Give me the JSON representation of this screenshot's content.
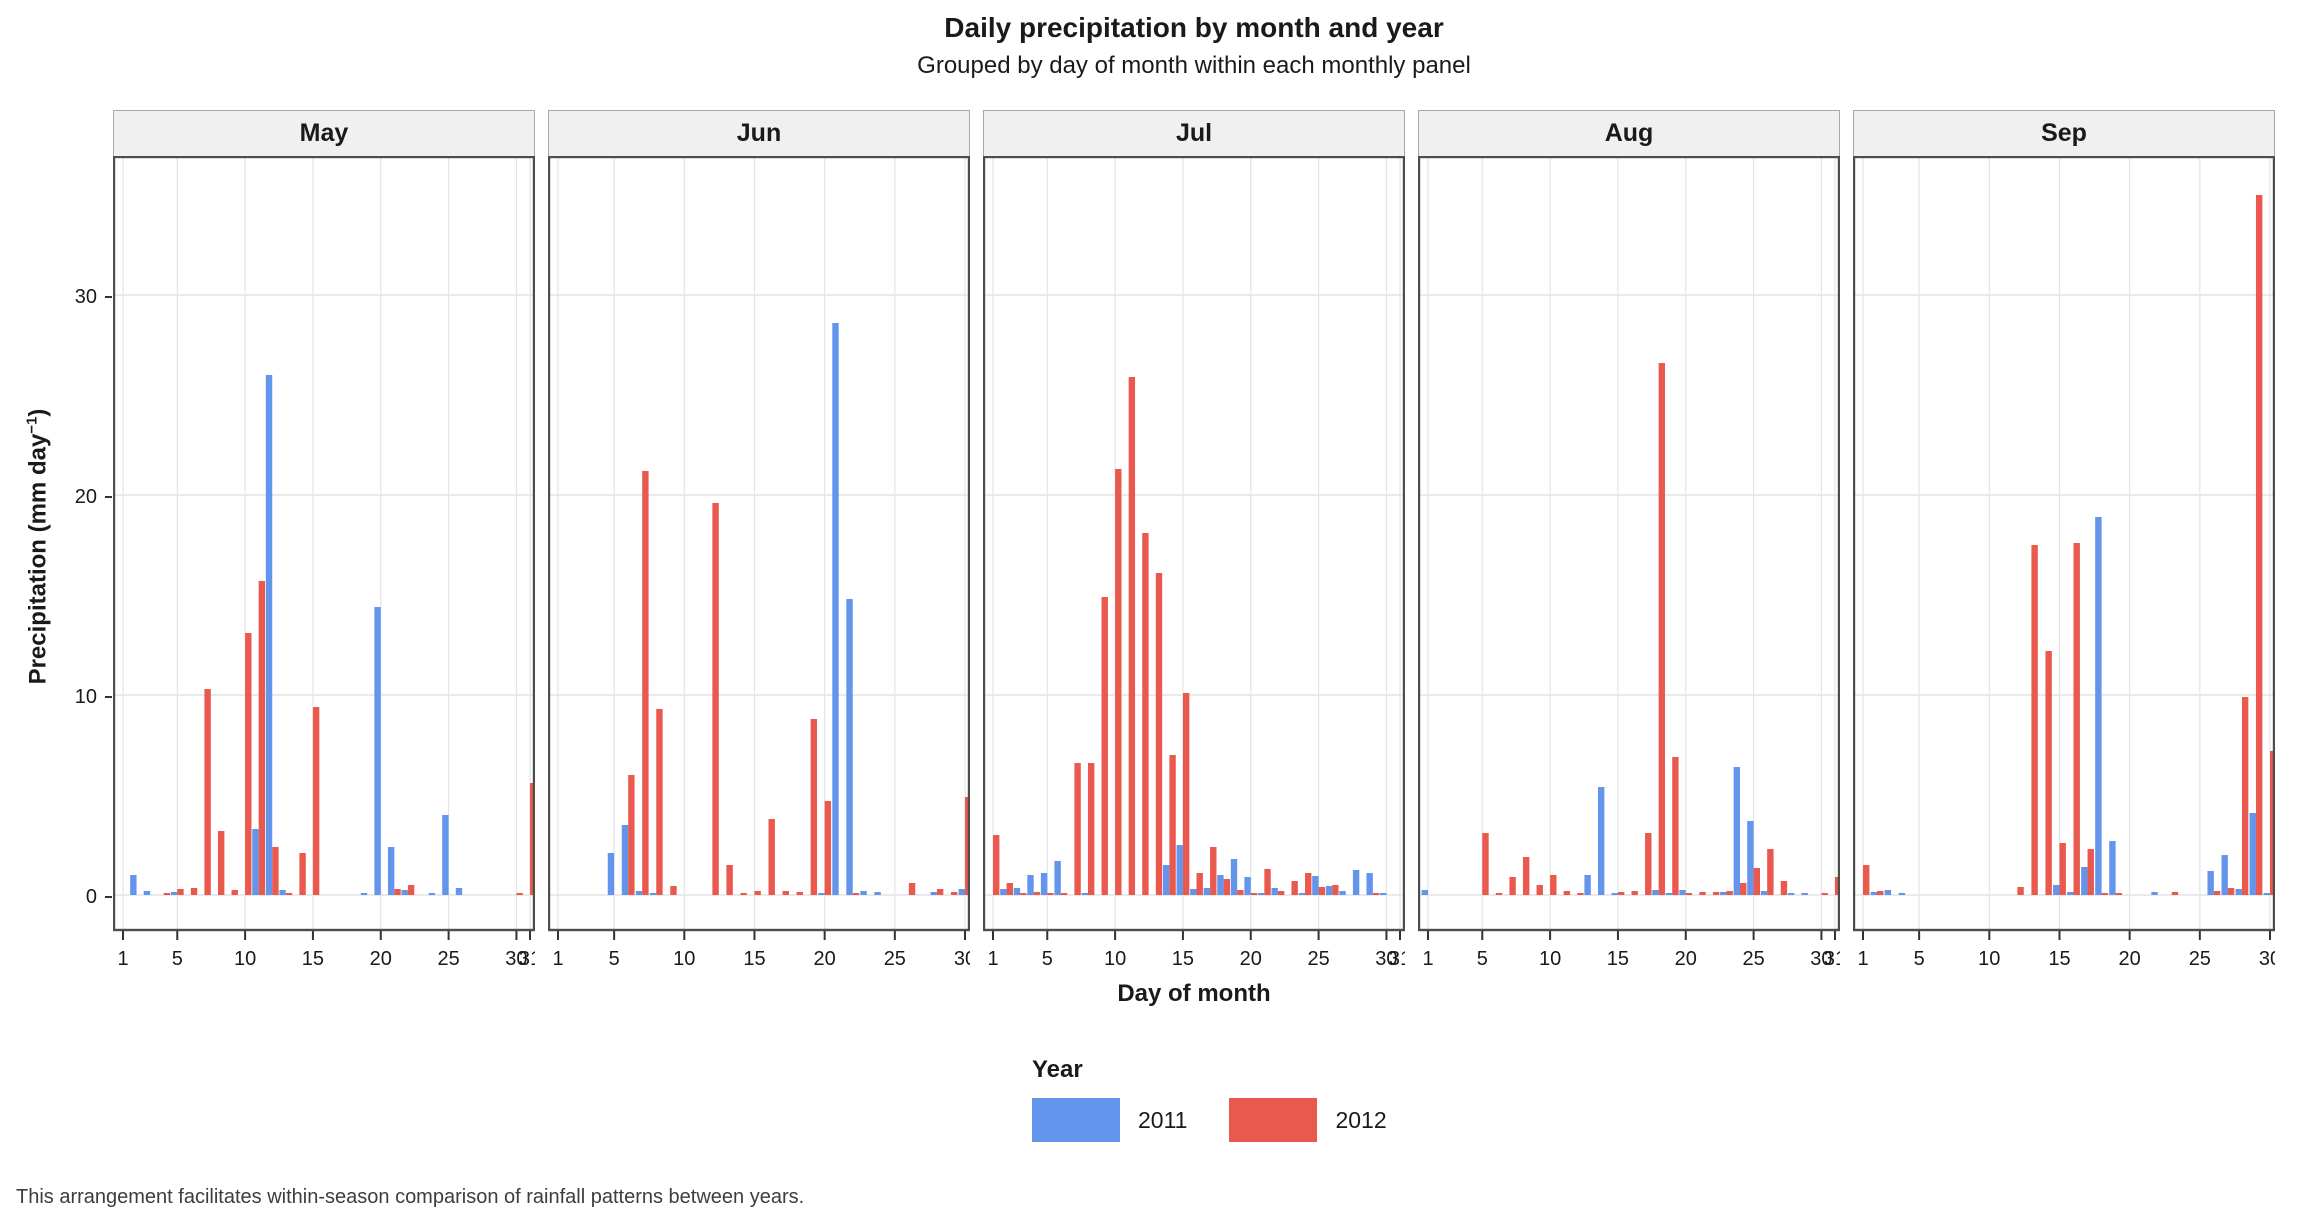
{
  "title": "Daily precipitation by month and year",
  "subtitle": "Grouped by day of month within each monthly panel",
  "footer": "This arrangement facilitates within-season comparison of rainfall patterns between years.",
  "y_axis": {
    "title_main": "Precipitation (mm day",
    "title_sup": "−1",
    "title_close": ")",
    "ticks": [
      0,
      10,
      20,
      30
    ]
  },
  "x_axis": {
    "title": "Day of month"
  },
  "legend": {
    "title": "Year",
    "entries": [
      {
        "label": "2011",
        "color": "#6495ED"
      },
      {
        "label": "2012",
        "color": "#E9594E"
      }
    ]
  },
  "colors": {
    "year_2011": "#6495ED",
    "year_2012": "#E9594E",
    "strip_bg": "#f0f0f0",
    "strip_border": "#a8a8a8",
    "panel_border": "#4d4d4d",
    "gridline": "#e4e4e4",
    "axis": "#333333"
  },
  "chart_data": {
    "type": "bar",
    "grouped_by": "year",
    "title": "Daily precipitation by month and year",
    "subtitle": "Grouped by day of month within each monthly panel",
    "xlabel": "Day of month",
    "ylabel": "Precipitation (mm day^-1)",
    "ylim": [
      0,
      37
    ],
    "y_ticks": [
      0,
      10,
      20,
      30
    ],
    "legend_position": "bottom",
    "facets": [
      {
        "month": "May",
        "days": 31,
        "x_ticks": [
          1,
          5,
          10,
          15,
          20,
          25,
          30,
          31
        ],
        "series": [
          {
            "name": "2011",
            "color": "#6495ED",
            "points": [
              [
                2,
                1.0
              ],
              [
                3,
                0.2
              ],
              [
                5,
                0.15
              ],
              [
                11,
                3.3
              ],
              [
                12,
                26.0
              ],
              [
                13,
                0.25
              ],
              [
                19,
                0.1
              ],
              [
                20,
                14.4
              ],
              [
                21,
                2.4
              ],
              [
                22,
                0.25
              ],
              [
                24,
                0.1
              ],
              [
                25,
                4.0
              ],
              [
                26,
                0.35
              ]
            ]
          },
          {
            "name": "2012",
            "color": "#E9594E",
            "points": [
              [
                4,
                0.1
              ],
              [
                5,
                0.3
              ],
              [
                6,
                0.35
              ],
              [
                7,
                10.3
              ],
              [
                8,
                3.2
              ],
              [
                9,
                0.25
              ],
              [
                10,
                13.1
              ],
              [
                11,
                15.7
              ],
              [
                12,
                2.4
              ],
              [
                13,
                0.1
              ],
              [
                14,
                2.1
              ],
              [
                15,
                9.4
              ],
              [
                21,
                0.3
              ],
              [
                22,
                0.5
              ],
              [
                30,
                0.1
              ],
              [
                31,
                5.6
              ]
            ]
          }
        ]
      },
      {
        "month": "Jun",
        "days": 30,
        "x_ticks": [
          1,
          5,
          10,
          15,
          20,
          25,
          30
        ],
        "series": [
          {
            "name": "2011",
            "color": "#6495ED",
            "points": [
              [
                5,
                2.1
              ],
              [
                6,
                3.5
              ],
              [
                7,
                0.2
              ],
              [
                8,
                0.1
              ],
              [
                20,
                0.1
              ],
              [
                21,
                28.6
              ],
              [
                22,
                14.8
              ],
              [
                23,
                0.2
              ],
              [
                24,
                0.15
              ],
              [
                28,
                0.15
              ],
              [
                30,
                0.3
              ]
            ]
          },
          {
            "name": "2012",
            "color": "#E9594E",
            "points": [
              [
                6,
                6.0
              ],
              [
                7,
                21.2
              ],
              [
                8,
                9.3
              ],
              [
                9,
                0.45
              ],
              [
                12,
                19.6
              ],
              [
                13,
                1.5
              ],
              [
                14,
                0.1
              ],
              [
                15,
                0.2
              ],
              [
                16,
                3.8
              ],
              [
                17,
                0.2
              ],
              [
                18,
                0.15
              ],
              [
                19,
                8.8
              ],
              [
                20,
                4.7
              ],
              [
                22,
                0.1
              ],
              [
                26,
                0.6
              ],
              [
                28,
                0.3
              ],
              [
                29,
                0.15
              ],
              [
                30,
                4.9
              ]
            ]
          }
        ]
      },
      {
        "month": "Jul",
        "days": 31,
        "x_ticks": [
          1,
          5,
          10,
          15,
          20,
          25,
          30,
          31
        ],
        "series": [
          {
            "name": "2011",
            "color": "#6495ED",
            "points": [
              [
                2,
                0.3
              ],
              [
                3,
                0.35
              ],
              [
                4,
                1.0
              ],
              [
                5,
                1.1
              ],
              [
                6,
                1.7
              ],
              [
                8,
                0.1
              ],
              [
                14,
                1.5
              ],
              [
                15,
                2.5
              ],
              [
                16,
                0.3
              ],
              [
                17,
                0.35
              ],
              [
                18,
                1.0
              ],
              [
                19,
                1.8
              ],
              [
                20,
                0.9
              ],
              [
                21,
                0.1
              ],
              [
                22,
                0.35
              ],
              [
                24,
                0.1
              ],
              [
                25,
                0.95
              ],
              [
                26,
                0.45
              ],
              [
                27,
                0.2
              ],
              [
                28,
                1.25
              ],
              [
                29,
                1.1
              ],
              [
                30,
                0.1
              ]
            ]
          },
          {
            "name": "2012",
            "color": "#E9594E",
            "points": [
              [
                1,
                3.0
              ],
              [
                2,
                0.6
              ],
              [
                3,
                0.1
              ],
              [
                4,
                0.15
              ],
              [
                5,
                0.1
              ],
              [
                6,
                0.1
              ],
              [
                7,
                6.6
              ],
              [
                8,
                6.6
              ],
              [
                9,
                14.9
              ],
              [
                10,
                21.3
              ],
              [
                11,
                25.9
              ],
              [
                12,
                18.1
              ],
              [
                13,
                16.1
              ],
              [
                14,
                7.0
              ],
              [
                15,
                10.1
              ],
              [
                16,
                1.1
              ],
              [
                17,
                2.4
              ],
              [
                18,
                0.8
              ],
              [
                19,
                0.25
              ],
              [
                20,
                0.1
              ],
              [
                21,
                1.3
              ],
              [
                22,
                0.2
              ],
              [
                23,
                0.7
              ],
              [
                24,
                1.1
              ],
              [
                25,
                0.4
              ],
              [
                26,
                0.5
              ],
              [
                29,
                0.1
              ]
            ]
          }
        ]
      },
      {
        "month": "Aug",
        "days": 31,
        "x_ticks": [
          1,
          5,
          10,
          15,
          20,
          25,
          30,
          31
        ],
        "series": [
          {
            "name": "2011",
            "color": "#6495ED",
            "points": [
              [
                1,
                0.25
              ],
              [
                13,
                1.0
              ],
              [
                14,
                5.4
              ],
              [
                15,
                0.1
              ],
              [
                18,
                0.25
              ],
              [
                19,
                0.1
              ],
              [
                20,
                0.25
              ],
              [
                23,
                0.15
              ],
              [
                24,
                6.4
              ],
              [
                25,
                3.7
              ],
              [
                26,
                0.2
              ],
              [
                28,
                0.1
              ],
              [
                29,
                0.1
              ]
            ]
          },
          {
            "name": "2012",
            "color": "#E9594E",
            "points": [
              [
                5,
                3.1
              ],
              [
                6,
                0.1
              ],
              [
                7,
                0.9
              ],
              [
                8,
                1.9
              ],
              [
                9,
                0.5
              ],
              [
                10,
                1.0
              ],
              [
                11,
                0.2
              ],
              [
                12,
                0.1
              ],
              [
                15,
                0.15
              ],
              [
                16,
                0.2
              ],
              [
                17,
                3.1
              ],
              [
                18,
                26.6
              ],
              [
                19,
                6.9
              ],
              [
                20,
                0.1
              ],
              [
                21,
                0.15
              ],
              [
                22,
                0.15
              ],
              [
                23,
                0.2
              ],
              [
                24,
                0.6
              ],
              [
                25,
                1.35
              ],
              [
                26,
                2.3
              ],
              [
                27,
                0.7
              ],
              [
                30,
                0.1
              ],
              [
                31,
                0.9
              ]
            ]
          }
        ]
      },
      {
        "month": "Sep",
        "days": 30,
        "x_ticks": [
          1,
          5,
          10,
          15,
          20,
          25,
          30
        ],
        "series": [
          {
            "name": "2011",
            "color": "#6495ED",
            "points": [
              [
                2,
                0.15
              ],
              [
                3,
                0.25
              ],
              [
                4,
                0.1
              ],
              [
                15,
                0.5
              ],
              [
                16,
                0.15
              ],
              [
                17,
                1.4
              ],
              [
                18,
                18.9
              ],
              [
                19,
                2.7
              ],
              [
                22,
                0.15
              ],
              [
                26,
                1.2
              ],
              [
                27,
                2.0
              ],
              [
                28,
                0.3
              ],
              [
                29,
                4.1
              ],
              [
                30,
                0.1
              ]
            ]
          },
          {
            "name": "2012",
            "color": "#E9594E",
            "points": [
              [
                1,
                1.5
              ],
              [
                2,
                0.2
              ],
              [
                12,
                0.4
              ],
              [
                13,
                17.5
              ],
              [
                14,
                12.2
              ],
              [
                15,
                2.6
              ],
              [
                16,
                17.6
              ],
              [
                17,
                2.3
              ],
              [
                18,
                0.1
              ],
              [
                19,
                0.1
              ],
              [
                23,
                0.15
              ],
              [
                26,
                0.2
              ],
              [
                27,
                0.35
              ],
              [
                28,
                9.9
              ],
              [
                29,
                35.0
              ],
              [
                30,
                7.2
              ]
            ]
          }
        ]
      }
    ]
  }
}
